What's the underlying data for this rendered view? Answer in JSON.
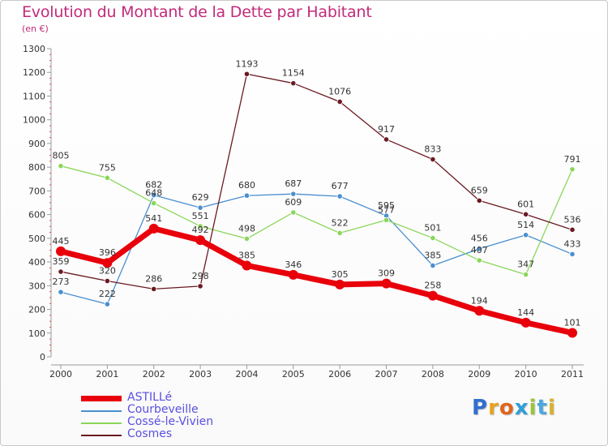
{
  "title": "Evolution du Montant de la Dette par Habitant",
  "subtitle": "(en €)",
  "logo": {
    "text": "Proxiti",
    "letters": [
      {
        "ch": "P",
        "color": "#2f6fd0"
      },
      {
        "ch": "r",
        "color": "#e8a21a"
      },
      {
        "ch": "o",
        "color": "#e0641e"
      },
      {
        "ch": "x",
        "color": "#2f9fd8"
      },
      {
        "ch": "i",
        "color": "#9bc43a"
      },
      {
        "ch": "t",
        "color": "#4aa8de"
      },
      {
        "ch": "i",
        "color": "#d8b22a"
      }
    ]
  },
  "chart_data": {
    "type": "line",
    "title": "Evolution du Montant de la Dette par Habitant",
    "subtitle": "(en €)",
    "categories": [
      "2000",
      "2001",
      "2002",
      "2003",
      "2004",
      "2005",
      "2006",
      "2007",
      "2008",
      "2009",
      "2010",
      "2011"
    ],
    "ylim": [
      0,
      1300
    ],
    "yticks": [
      0,
      100,
      200,
      300,
      400,
      500,
      600,
      700,
      800,
      900,
      1000,
      1100,
      1200,
      1300
    ],
    "grid": false,
    "legend_position": "bottom-left",
    "series": [
      {
        "name": "ASTILLé",
        "color": "#e8000b",
        "values": [
          445,
          396,
          541,
          492,
          385,
          346,
          305,
          309,
          258,
          194,
          144,
          101
        ]
      },
      {
        "name": "Courbeveille",
        "color": "#4a8fd0",
        "values": [
          273,
          222,
          682,
          629,
          680,
          687,
          677,
          595,
          385,
          456,
          514,
          433
        ]
      },
      {
        "name": "Cossé-le-Vivien",
        "color": "#8bd65a",
        "values": [
          805,
          755,
          648,
          551,
          498,
          609,
          522,
          577,
          501,
          407,
          347,
          791
        ]
      },
      {
        "name": "Cosmes",
        "color": "#6b1a22",
        "values": [
          359,
          320,
          286,
          298,
          1193,
          1154,
          1076,
          917,
          833,
          659,
          601,
          536
        ]
      }
    ]
  }
}
